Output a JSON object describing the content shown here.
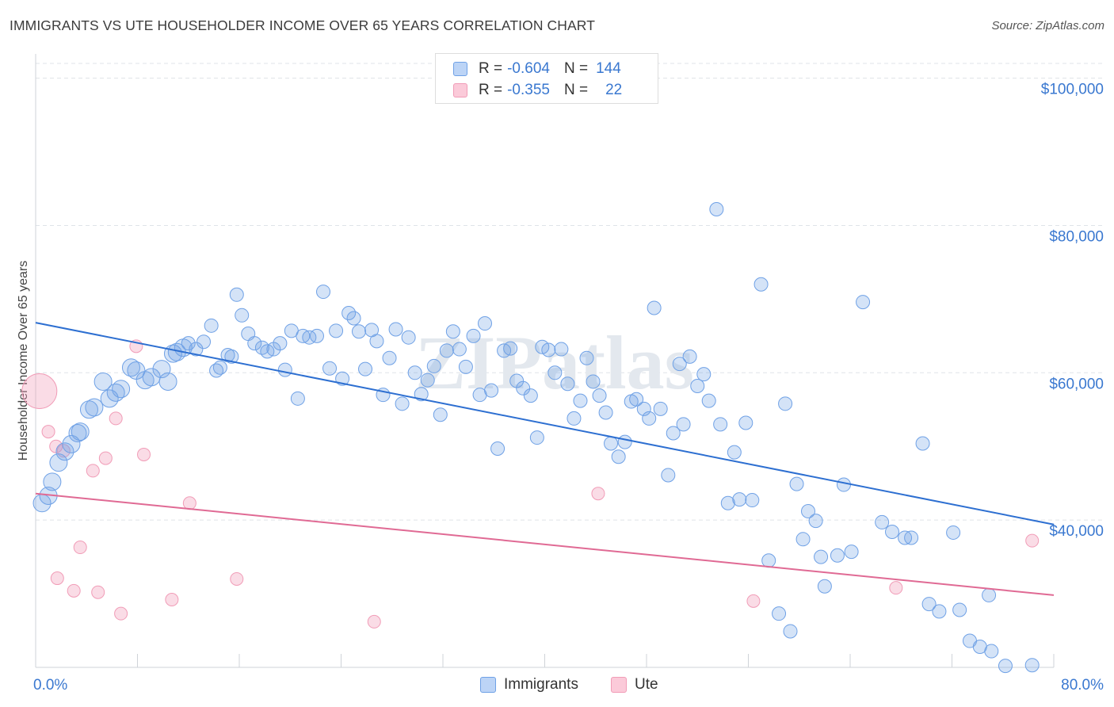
{
  "title": "IMMIGRANTS VS UTE HOUSEHOLDER INCOME OVER 65 YEARS CORRELATION CHART",
  "source": "Source: ZipAtlas.com",
  "watermark": "ZIPatlas",
  "stats": [
    {
      "r_label": "R =",
      "r_value": "-0.604",
      "n_label": "N =",
      "n_value": "144"
    },
    {
      "r_label": "R =",
      "r_value": "-0.355",
      "n_label": "N =",
      "n_value": "22"
    }
  ],
  "legend": [
    "Immigrants",
    "Ute"
  ],
  "chart_data": {
    "type": "scatter",
    "xlabel": "",
    "ylabel": "Householder Income Over 65 years",
    "xlim": [
      0,
      80
    ],
    "ylim": [
      20000,
      102000
    ],
    "x_tick_labels": [
      "0.0%",
      "80.0%"
    ],
    "y_ticks": [
      40000,
      60000,
      80000,
      100000
    ],
    "y_tick_labels": [
      "$40,000",
      "$60,000",
      "$80,000",
      "$100,000"
    ],
    "grid": "horizontal dashed",
    "colors": {
      "Immigrants": "#6fa1e6",
      "Ute": "#f19cb7",
      "immigrants_trend": "#2d6fd1",
      "ute_trend": "#e06a94",
      "tick_text": "#3a78d0"
    },
    "series": [
      {
        "name": "Immigrants",
        "trend": {
          "x": [
            0,
            80
          ],
          "y": [
            66800,
            39400
          ]
        },
        "points": [
          [
            0.5,
            42.3
          ],
          [
            1.0,
            43.3
          ],
          [
            1.3,
            45.2
          ],
          [
            1.8,
            47.8
          ],
          [
            2.3,
            49.3
          ],
          [
            2.8,
            50.3
          ],
          [
            3.3,
            51.8
          ],
          [
            3.5,
            52.0
          ],
          [
            4.2,
            55.0
          ],
          [
            4.6,
            55.3
          ],
          [
            5.3,
            58.8
          ],
          [
            5.8,
            56.5
          ],
          [
            6.3,
            57.3
          ],
          [
            6.7,
            57.8
          ],
          [
            7.5,
            60.7
          ],
          [
            7.9,
            60.3
          ],
          [
            8.6,
            59.0
          ],
          [
            9.1,
            59.4
          ],
          [
            9.9,
            60.5
          ],
          [
            10.4,
            58.8
          ],
          [
            10.8,
            62.6
          ],
          [
            11.1,
            62.8
          ],
          [
            11.6,
            63.4
          ],
          [
            12.0,
            64.0
          ],
          [
            12.6,
            63.2
          ],
          [
            13.2,
            64.2
          ],
          [
            13.8,
            66.4
          ],
          [
            14.2,
            60.3
          ],
          [
            14.5,
            60.7
          ],
          [
            15.1,
            62.4
          ],
          [
            15.4,
            62.2
          ],
          [
            15.8,
            70.6
          ],
          [
            16.2,
            67.8
          ],
          [
            16.7,
            65.3
          ],
          [
            17.2,
            64.0
          ],
          [
            17.8,
            63.4
          ],
          [
            18.2,
            62.9
          ],
          [
            18.7,
            63.2
          ],
          [
            19.2,
            64.0
          ],
          [
            19.6,
            60.4
          ],
          [
            20.1,
            65.7
          ],
          [
            20.6,
            56.5
          ],
          [
            21.0,
            65.0
          ],
          [
            21.5,
            64.8
          ],
          [
            22.1,
            65.0
          ],
          [
            22.6,
            71.0
          ],
          [
            23.1,
            60.6
          ],
          [
            23.6,
            65.7
          ],
          [
            24.1,
            59.2
          ],
          [
            24.6,
            68.1
          ],
          [
            25.0,
            67.4
          ],
          [
            25.4,
            65.6
          ],
          [
            25.9,
            60.5
          ],
          [
            26.4,
            65.8
          ],
          [
            26.8,
            64.3
          ],
          [
            27.3,
            57.0
          ],
          [
            27.8,
            62.0
          ],
          [
            28.3,
            65.9
          ],
          [
            28.8,
            55.8
          ],
          [
            29.3,
            64.8
          ],
          [
            29.8,
            60.0
          ],
          [
            30.3,
            57.1
          ],
          [
            30.8,
            59.0
          ],
          [
            31.3,
            60.9
          ],
          [
            31.8,
            54.3
          ],
          [
            32.3,
            63.0
          ],
          [
            32.8,
            65.6
          ],
          [
            33.3,
            63.2
          ],
          [
            33.8,
            60.8
          ],
          [
            34.4,
            65.0
          ],
          [
            34.9,
            57.0
          ],
          [
            35.3,
            66.7
          ],
          [
            35.8,
            57.6
          ],
          [
            36.3,
            49.7
          ],
          [
            36.8,
            63.0
          ],
          [
            37.3,
            63.3
          ],
          [
            37.8,
            58.9
          ],
          [
            38.3,
            57.9
          ],
          [
            38.9,
            56.9
          ],
          [
            39.4,
            51.2
          ],
          [
            39.8,
            63.5
          ],
          [
            40.3,
            63.1
          ],
          [
            40.8,
            60.0
          ],
          [
            41.3,
            63.2
          ],
          [
            41.8,
            58.5
          ],
          [
            42.3,
            53.8
          ],
          [
            42.8,
            56.2
          ],
          [
            43.3,
            62.0
          ],
          [
            43.8,
            58.8
          ],
          [
            44.3,
            56.9
          ],
          [
            44.8,
            54.6
          ],
          [
            45.2,
            50.4
          ],
          [
            45.8,
            48.6
          ],
          [
            46.3,
            50.6
          ],
          [
            46.8,
            56.1
          ],
          [
            47.2,
            56.4
          ],
          [
            47.8,
            55.1
          ],
          [
            48.2,
            53.8
          ],
          [
            48.6,
            68.8
          ],
          [
            49.1,
            55.1
          ],
          [
            49.7,
            46.1
          ],
          [
            50.1,
            51.8
          ],
          [
            50.6,
            61.2
          ],
          [
            50.9,
            53.0
          ],
          [
            51.4,
            62.2
          ],
          [
            52.0,
            58.2
          ],
          [
            52.5,
            59.8
          ],
          [
            52.9,
            56.2
          ],
          [
            53.5,
            82.2
          ],
          [
            53.8,
            53.0
          ],
          [
            54.4,
            42.3
          ],
          [
            54.9,
            49.2
          ],
          [
            55.3,
            42.8
          ],
          [
            55.8,
            53.2
          ],
          [
            56.3,
            42.7
          ],
          [
            57.0,
            72.0
          ],
          [
            57.6,
            34.5
          ],
          [
            58.4,
            27.3
          ],
          [
            58.9,
            55.8
          ],
          [
            59.3,
            24.9
          ],
          [
            59.8,
            44.9
          ],
          [
            60.3,
            37.4
          ],
          [
            60.7,
            41.2
          ],
          [
            61.3,
            39.9
          ],
          [
            61.7,
            35.0
          ],
          [
            62.0,
            31.0
          ],
          [
            63.0,
            35.2
          ],
          [
            63.5,
            44.8
          ],
          [
            64.1,
            35.7
          ],
          [
            65.0,
            69.6
          ],
          [
            66.5,
            39.7
          ],
          [
            67.3,
            38.4
          ],
          [
            68.3,
            37.6
          ],
          [
            68.8,
            37.6
          ],
          [
            69.7,
            50.4
          ],
          [
            70.2,
            28.6
          ],
          [
            71.0,
            27.6
          ],
          [
            72.1,
            38.3
          ],
          [
            72.6,
            27.8
          ],
          [
            73.4,
            23.6
          ],
          [
            74.2,
            22.8
          ],
          [
            74.9,
            29.8
          ],
          [
            75.1,
            22.2
          ],
          [
            76.2,
            20.2
          ],
          [
            78.3,
            20.3
          ]
        ]
      },
      {
        "name": "Ute",
        "trend": {
          "x": [
            0,
            80
          ],
          "y": [
            43600,
            29800
          ]
        },
        "points": [
          [
            0.3,
            57.5
          ],
          [
            1.0,
            52.0
          ],
          [
            1.6,
            50.0
          ],
          [
            2.2,
            49.4
          ],
          [
            1.7,
            32.1
          ],
          [
            3.5,
            36.3
          ],
          [
            3.0,
            30.4
          ],
          [
            4.5,
            46.7
          ],
          [
            4.9,
            30.2
          ],
          [
            5.5,
            48.4
          ],
          [
            6.3,
            53.8
          ],
          [
            6.7,
            27.3
          ],
          [
            7.9,
            63.6
          ],
          [
            8.5,
            48.9
          ],
          [
            10.7,
            29.2
          ],
          [
            12.1,
            42.3
          ],
          [
            15.8,
            32.0
          ],
          [
            26.6,
            26.2
          ],
          [
            44.2,
            43.6
          ],
          [
            56.4,
            29.0
          ],
          [
            67.6,
            30.8
          ],
          [
            78.3,
            37.2
          ]
        ]
      }
    ]
  }
}
